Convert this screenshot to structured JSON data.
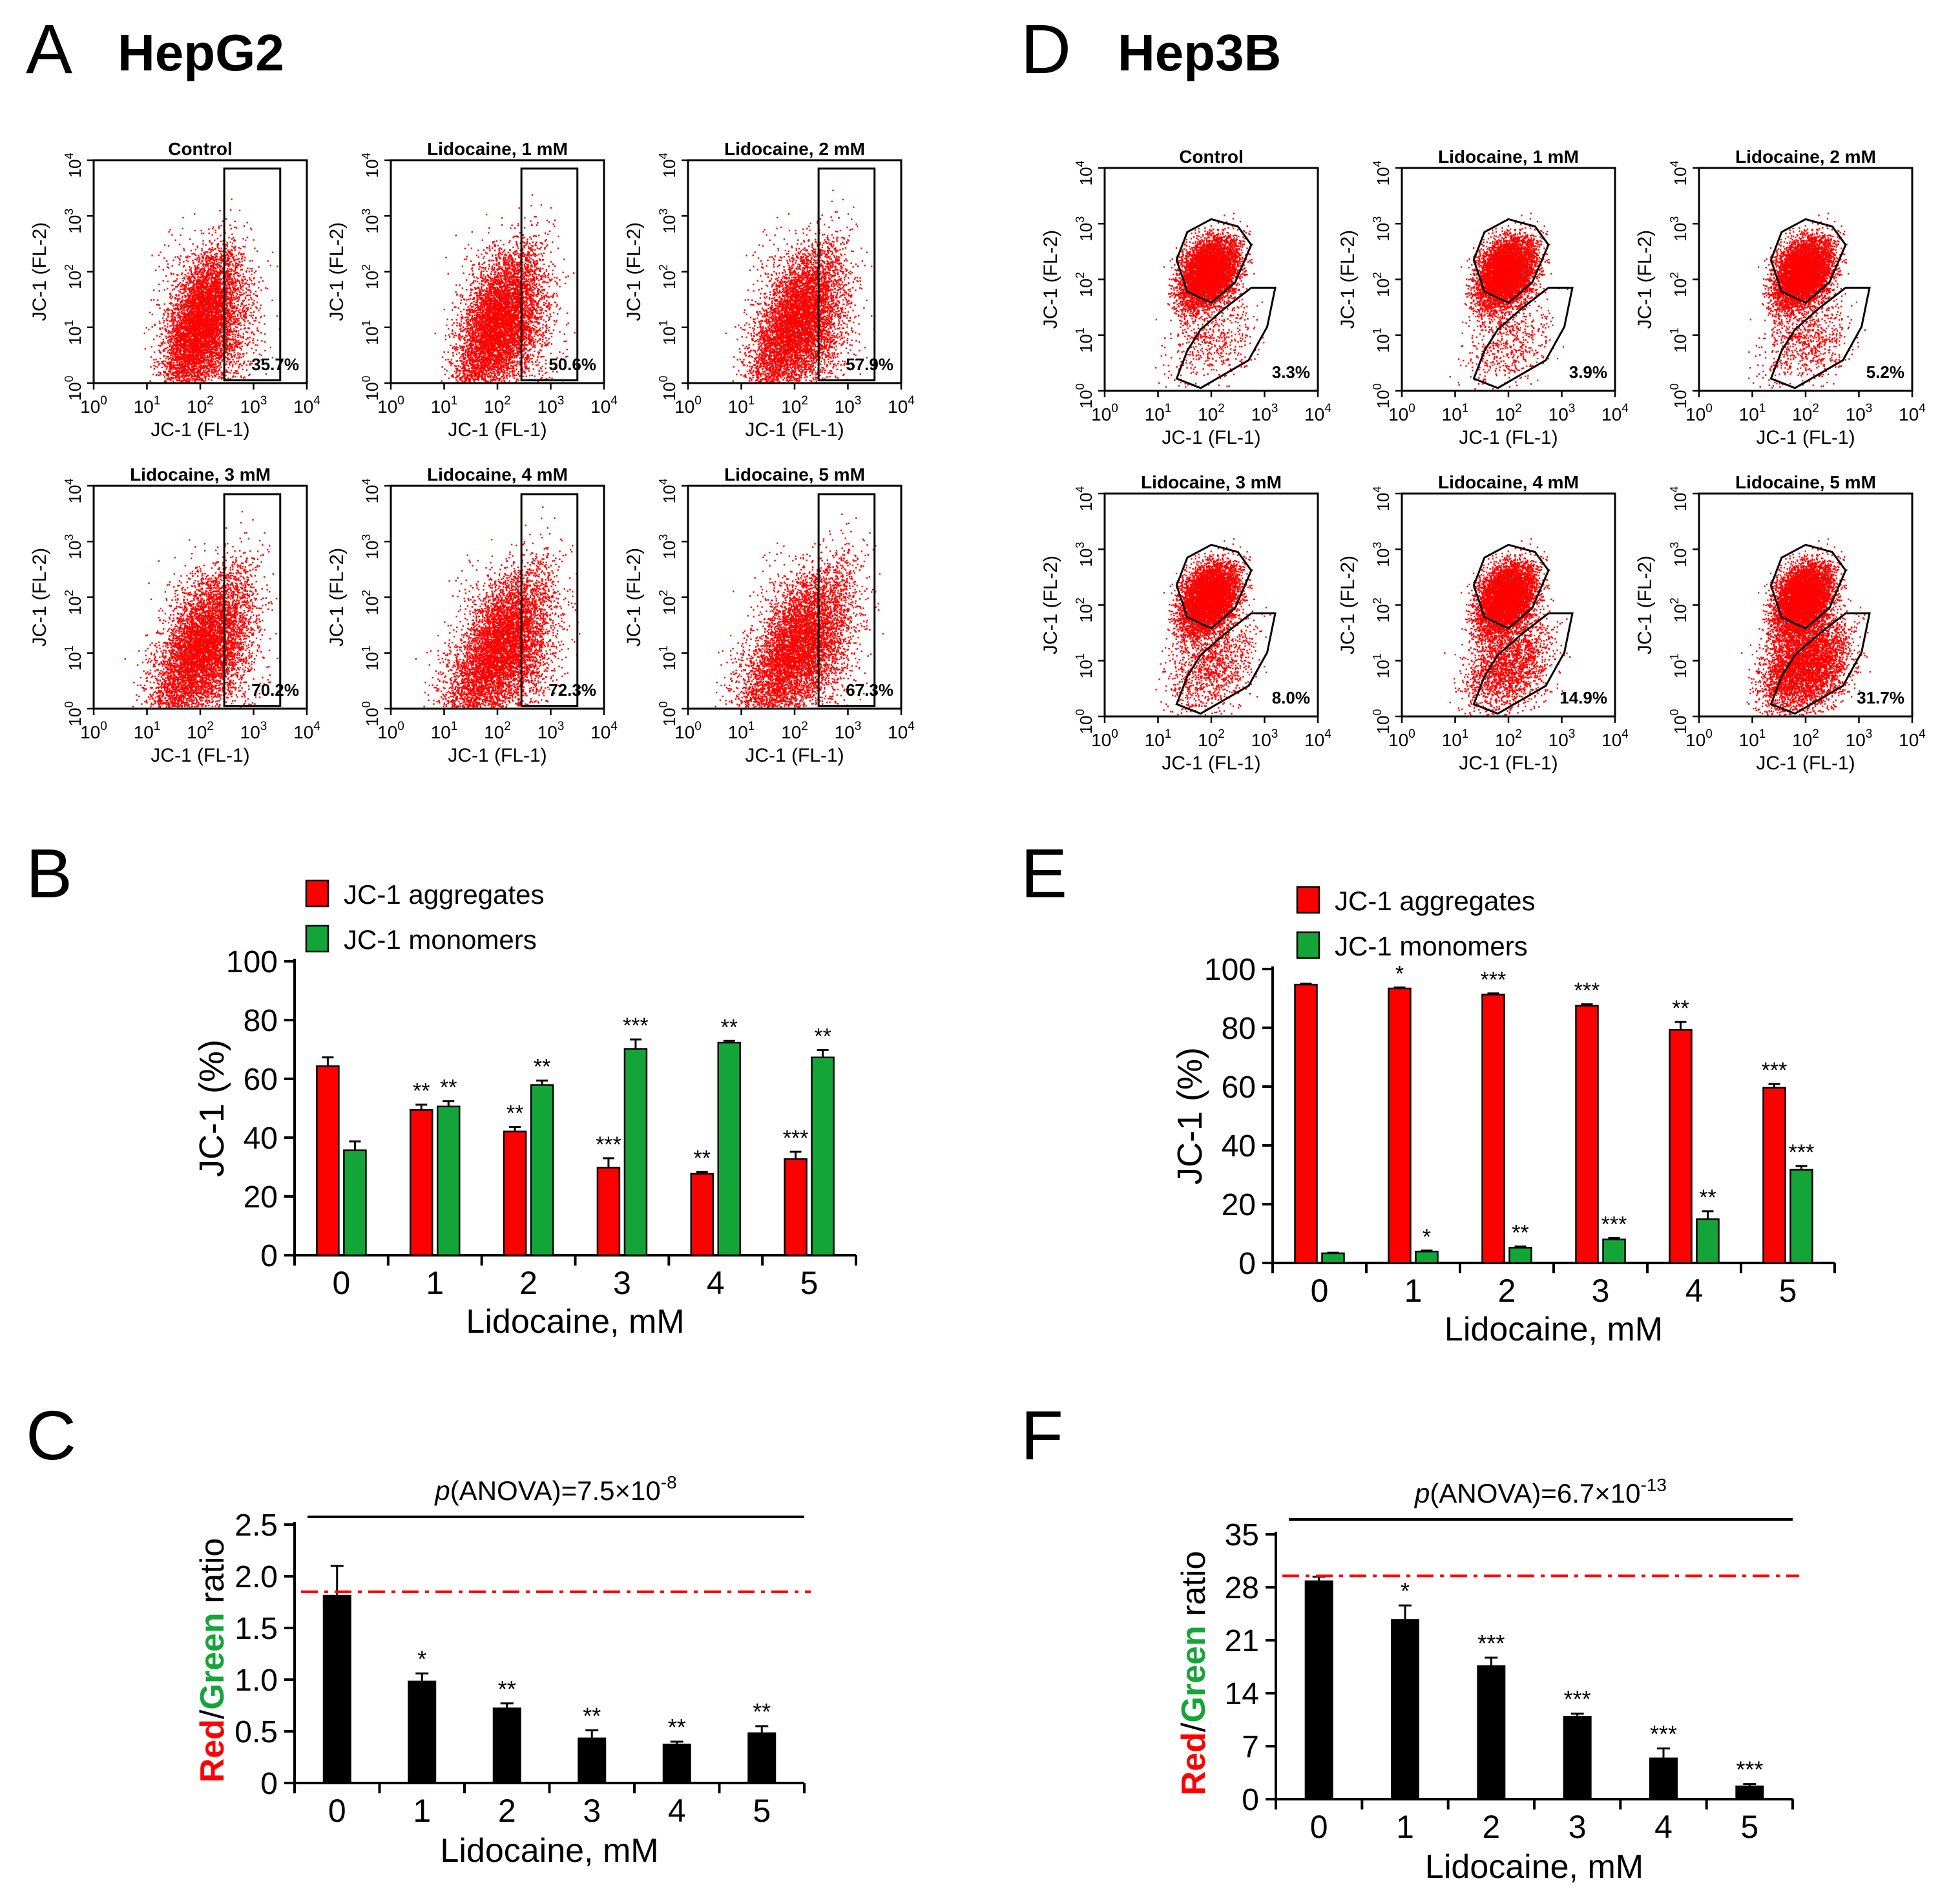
{
  "panels": {
    "A": {
      "letter": "A",
      "cell_line": "HepG2"
    },
    "B": {
      "letter": "B"
    },
    "C": {
      "letter": "C"
    },
    "D": {
      "letter": "D",
      "cell_line": "Hep3B"
    },
    "E": {
      "letter": "E"
    },
    "F": {
      "letter": "F"
    }
  },
  "colors": {
    "red": "#ff0000",
    "green": "#13a538",
    "black": "#000000",
    "dashed": "#ff0000"
  },
  "flow": {
    "xlabel": "JC-1 (FL-1)",
    "ylabel": "JC-1 (FL-2)",
    "tick_base": "10",
    "tick_exps": [
      "0",
      "1",
      "2",
      "3",
      "4"
    ],
    "HepG2": [
      {
        "title": "Control",
        "pct": "35.7%"
      },
      {
        "title": "Lidocaine, 1 mM",
        "pct": "50.6%"
      },
      {
        "title": "Lidocaine, 2 mM",
        "pct": "57.9%"
      },
      {
        "title": "Lidocaine, 3 mM",
        "pct": "70.2%"
      },
      {
        "title": "Lidocaine, 4 mM",
        "pct": "72.3%"
      },
      {
        "title": "Lidocaine, 5 mM",
        "pct": "67.3%"
      }
    ],
    "Hep3B": [
      {
        "title": "Control",
        "pct": "3.3%"
      },
      {
        "title": "Lidocaine, 1 mM",
        "pct": "3.9%"
      },
      {
        "title": "Lidocaine, 2 mM",
        "pct": "5.2%"
      },
      {
        "title": "Lidocaine, 3 mM",
        "pct": "8.0%"
      },
      {
        "title": "Lidocaine, 4 mM",
        "pct": "14.9%"
      },
      {
        "title": "Lidocaine, 5 mM",
        "pct": "31.7%"
      }
    ]
  },
  "chart_data": [
    {
      "id": "B",
      "type": "bar",
      "categories": [
        "0",
        "1",
        "2",
        "3",
        "4",
        "5"
      ],
      "series": [
        {
          "name": "JC-1 aggregates",
          "color": "red",
          "values": [
            64.3,
            49.4,
            42.1,
            29.8,
            27.7,
            32.7
          ],
          "errors": [
            3.0,
            1.8,
            1.5,
            3.2,
            0.6,
            2.5
          ],
          "sig": [
            "",
            "**",
            "**",
            "***",
            "**",
            "***"
          ]
        },
        {
          "name": "JC-1 monomers",
          "color": "green",
          "values": [
            35.7,
            50.6,
            57.9,
            70.2,
            72.3,
            67.3
          ],
          "errors": [
            3.0,
            1.8,
            1.5,
            3.2,
            0.6,
            2.5
          ],
          "sig": [
            "",
            "**",
            "**",
            "***",
            "**",
            "**"
          ]
        }
      ],
      "ylabel": "JC-1 (%)",
      "xlabel": "Lidocaine, mM",
      "yticks": [
        "0",
        "20",
        "40",
        "60",
        "80",
        "100"
      ],
      "ylim": [
        0,
        100
      ]
    },
    {
      "id": "C",
      "type": "bar",
      "categories": [
        "0",
        "1",
        "2",
        "3",
        "4",
        "5"
      ],
      "values": [
        1.82,
        0.99,
        0.73,
        0.44,
        0.38,
        0.49
      ],
      "errors": [
        0.28,
        0.07,
        0.04,
        0.07,
        0.02,
        0.06
      ],
      "sig": [
        "",
        "*",
        "**",
        "**",
        "**",
        "**"
      ],
      "ylabel": {
        "red": "Red",
        "sep": "/",
        "green": "Green",
        "rest": " ratio"
      },
      "xlabel": "Lidocaine, mM",
      "yticks": [
        "0",
        "0.5",
        "1.0",
        "1.5",
        "2.0",
        "2.5"
      ],
      "ylim": [
        0,
        2.5
      ],
      "reference_line": 1.85,
      "pvalue": {
        "p": "p",
        "pre": "(ANOVA)=7.5×10",
        "exp": "-8"
      }
    },
    {
      "id": "E",
      "type": "bar",
      "categories": [
        "0",
        "1",
        "2",
        "3",
        "4",
        "5"
      ],
      "series": [
        {
          "name": "JC-1 aggregates",
          "color": "red",
          "values": [
            94.7,
            93.4,
            91.3,
            87.5,
            79.3,
            59.6
          ],
          "errors": [
            0.3,
            0.3,
            0.4,
            0.5,
            2.7,
            1.3
          ],
          "sig": [
            "",
            "*",
            "***",
            "***",
            "**",
            "***"
          ]
        },
        {
          "name": "JC-1 monomers",
          "color": "green",
          "values": [
            3.3,
            3.9,
            5.2,
            8.0,
            14.9,
            31.7
          ],
          "errors": [
            0.2,
            0.3,
            0.4,
            0.5,
            2.7,
            1.3
          ],
          "sig": [
            "",
            "*",
            "**",
            "***",
            "**",
            "***"
          ]
        }
      ],
      "ylabel": "JC-1 (%)",
      "xlabel": "Lidocaine, mM",
      "yticks": [
        "0",
        "20",
        "40",
        "60",
        "80",
        "100"
      ],
      "ylim": [
        0,
        100
      ]
    },
    {
      "id": "F",
      "type": "bar",
      "categories": [
        "0",
        "1",
        "2",
        "3",
        "4",
        "5"
      ],
      "values": [
        28.9,
        23.8,
        17.7,
        11.0,
        5.5,
        1.8
      ],
      "errors": [
        0.5,
        1.8,
        1.0,
        0.3,
        1.2,
        0.2
      ],
      "sig": [
        "",
        "*",
        "***",
        "***",
        "***",
        "***"
      ],
      "ylabel": {
        "red": "Red",
        "sep": "/",
        "green": "Green",
        "rest": " ratio"
      },
      "xlabel": "Lidocaine, mM",
      "yticks": [
        "0",
        "7",
        "14",
        "21",
        "28",
        "35"
      ],
      "ylim": [
        0,
        35
      ],
      "reference_line": 29.5,
      "pvalue": {
        "p": "p",
        "pre": "(ANOVA)=6.7×10",
        "exp": "-13"
      }
    }
  ]
}
